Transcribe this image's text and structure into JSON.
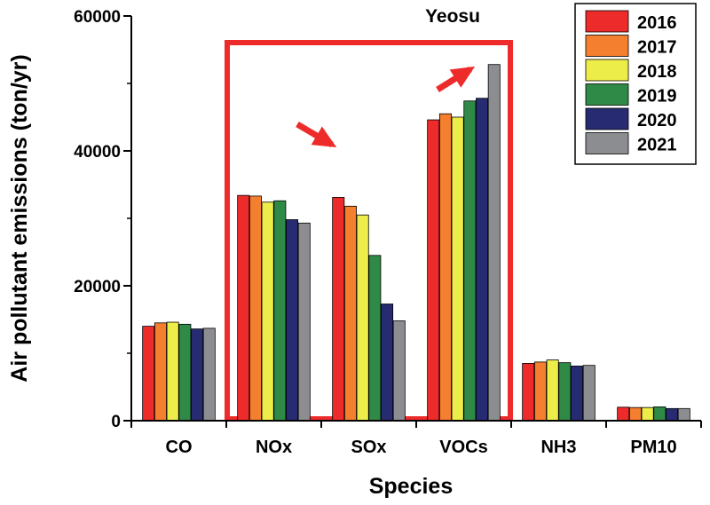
{
  "chart_data": {
    "type": "bar",
    "title": "Yeosu",
    "xlabel": "Species",
    "ylabel": "Air pollutant  emissions (ton/yr)",
    "ylim": [
      0,
      60000
    ],
    "yticks": [
      0,
      20000,
      40000,
      60000
    ],
    "categories": [
      "CO",
      "NOx",
      "SOx",
      "VOCs",
      "NH3",
      "PM10"
    ],
    "series": [
      {
        "name": "2016",
        "color": "#ee2b2b",
        "values": [
          14000,
          33400,
          33100,
          44600,
          8500,
          2000
        ]
      },
      {
        "name": "2017",
        "color": "#f47f2e",
        "values": [
          14500,
          33300,
          31800,
          45500,
          8700,
          1950
        ]
      },
      {
        "name": "2018",
        "color": "#eded4a",
        "values": [
          14600,
          32400,
          30500,
          45000,
          9000,
          1950
        ]
      },
      {
        "name": "2019",
        "color": "#2f8a47",
        "values": [
          14300,
          32600,
          24500,
          47400,
          8600,
          2050
        ]
      },
      {
        "name": "2020",
        "color": "#262b72",
        "values": [
          13600,
          29800,
          17300,
          47800,
          8100,
          1800
        ]
      },
      {
        "name": "2021",
        "color": "#8c8d91",
        "values": [
          13700,
          29300,
          14800,
          52800,
          8200,
          1800
        ]
      }
    ],
    "legend_position": "top-right",
    "grid": false,
    "annotations": {
      "highlight_box": {
        "from_category": "NOx",
        "to_category": "VOCs",
        "color": "#ee2b2b"
      },
      "arrows": [
        {
          "near_category": "SOx",
          "direction": "down",
          "color": "#ee2b2b"
        },
        {
          "near_category": "VOCs",
          "direction": "up",
          "color": "#ee2b2b"
        }
      ]
    }
  }
}
